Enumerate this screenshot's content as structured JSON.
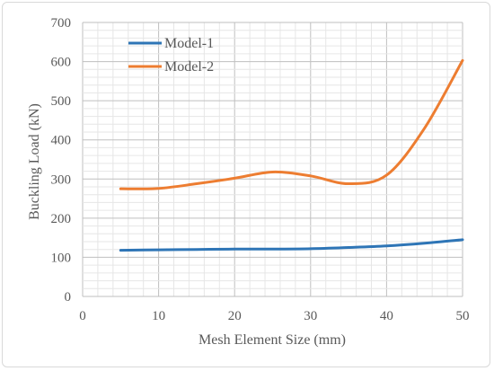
{
  "chart_data": {
    "type": "line",
    "title": "",
    "xlabel": "Mesh Element Size (mm)",
    "ylabel": "Buckling Load (kN)",
    "xlim": [
      0,
      50
    ],
    "ylim": [
      0,
      700
    ],
    "xticks": [
      0,
      10,
      20,
      30,
      40,
      50
    ],
    "yticks": [
      0,
      100,
      200,
      300,
      400,
      500,
      600,
      700
    ],
    "grid": true,
    "legend": "top-left",
    "series": [
      {
        "name": "Model-1",
        "color": "#2e75b6",
        "x": [
          5,
          10,
          15,
          20,
          25,
          30,
          35,
          40,
          45,
          50
        ],
        "y": [
          118,
          119,
          120,
          121,
          121,
          122,
          125,
          129,
          136,
          145
        ]
      },
      {
        "name": "Model-2",
        "color": "#ed7d31",
        "x": [
          5,
          10,
          15,
          20,
          25,
          30,
          35,
          40,
          45,
          50
        ],
        "y": [
          275,
          276,
          288,
          302,
          318,
          308,
          288,
          310,
          430,
          603
        ]
      }
    ]
  }
}
